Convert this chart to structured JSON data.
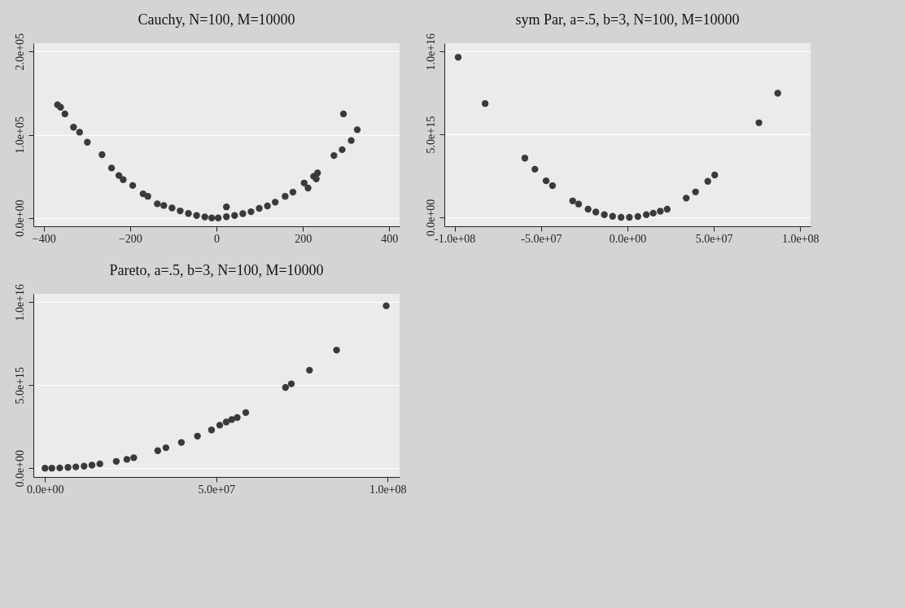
{
  "chart_data": [
    {
      "type": "scatter",
      "title": "Cauchy, N=100, M=10000",
      "marker": "circle",
      "grid": "y",
      "xlim": [
        -424,
        424
      ],
      "ylim": [
        -10000,
        210000
      ],
      "xticks": [
        -400,
        -200,
        0,
        200,
        400
      ],
      "yticks": [
        {
          "value": 0,
          "label": "0.0e+00"
        },
        {
          "value": 100000,
          "label": "1.0e+05"
        },
        {
          "value": 200000,
          "label": "2.0e+05"
        }
      ],
      "series": [
        {
          "color": "#3a3a3a",
          "x": [
            -368,
            -361,
            -351,
            -331,
            -317,
            -299,
            -265,
            -243,
            -226,
            -216,
            -194,
            -170,
            -159,
            -137,
            -122,
            -103,
            -84,
            -65,
            -46,
            -27,
            -11,
            4,
            23,
            23,
            42,
            61,
            80,
            99,
            118,
            136,
            159,
            177,
            203,
            212,
            225,
            234,
            231,
            272,
            291,
            294,
            312,
            326
          ],
          "values": [
            136000,
            133000,
            125000,
            109000,
            103000,
            91000,
            76000,
            60000,
            51000,
            46000,
            39000,
            29000,
            26000,
            17000,
            15000,
            12000,
            8500,
            5400,
            3000,
            1200,
            0,
            0,
            13300,
            1500,
            3000,
            5100,
            7500,
            11500,
            14500,
            19000,
            26000,
            31000,
            42000,
            36000,
            50000,
            54000,
            47000,
            75000,
            82000,
            125000,
            93000,
            106000
          ]
        }
      ]
    },
    {
      "type": "scatter",
      "title": "sym Par, a=.5, b=3, N=100, M=10000",
      "marker": "circle",
      "grid": "y",
      "xlim": [
        -106000000,
        106000000
      ],
      "ylim": [
        -540000000000000,
        10500000000000000
      ],
      "xticks": [
        {
          "value": -100000000,
          "label": "-1.0e+08"
        },
        {
          "value": -50000000,
          "label": "-5.0e+07"
        },
        {
          "value": 0,
          "label": "0.0e+00"
        },
        {
          "value": 50000000,
          "label": "5.0e+07"
        },
        {
          "value": 100000000,
          "label": "1.0e+08"
        }
      ],
      "yticks": [
        {
          "value": 0,
          "label": "0.0e+00"
        },
        {
          "value": 5000000000000000,
          "label": "5.0e+15"
        },
        {
          "value": 10000000000000000,
          "label": "1.0e+16"
        }
      ],
      "series": [
        {
          "color": "#3a3a3a",
          "x": [
            -98000000,
            -82400000,
            -59400000,
            -53600000,
            -47100000,
            -43400000,
            -31700000,
            -28300000,
            -22800000,
            -18300000,
            -13400000,
            -8600000,
            -3700000,
            1100000,
            6000000,
            10900000,
            14900000,
            19000000,
            23000000,
            34000000,
            39400000,
            46500000,
            50500000,
            76100000,
            87000000
          ],
          "values": [
            9650000000000000,
            6860000000000000,
            3570000000000000,
            2900000000000000,
            2200000000000000,
            1910000000000000,
            990000000000000,
            800000000000000,
            490000000000000,
            320000000000000,
            160000000000000,
            60000000000000,
            0,
            0,
            50000000000000,
            160000000000000,
            250000000000000,
            370000000000000,
            490000000000000,
            1160000000000000,
            1530000000000000,
            2170000000000000,
            2550000000000000,
            5700000000000000,
            7480000000000000
          ]
        }
      ]
    },
    {
      "type": "scatter",
      "title": "Pareto, a=.5, b=3, N=100, M=10000",
      "marker": "circle",
      "grid": "y",
      "xlim": [
        -3400000,
        103500000
      ],
      "ylim": [
        -530000000000000,
        10500000000000000
      ],
      "xticks": [
        {
          "value": 0,
          "label": "0.0e+00"
        },
        {
          "value": 50000000,
          "label": "5.0e+07"
        },
        {
          "value": 100000000,
          "label": "1.0e+08"
        }
      ],
      "yticks": [
        {
          "value": 0,
          "label": "0.0e+00"
        },
        {
          "value": 5000000000000000,
          "label": "5.0e+15"
        },
        {
          "value": 10000000000000000,
          "label": "1.0e+16"
        }
      ],
      "series": [
        {
          "color": "#3a3a3a",
          "x": [
            0,
            2000000,
            4300000,
            6700000,
            9000000,
            11400000,
            13700000,
            16000000,
            20800000,
            23900000,
            25900000,
            32900000,
            35300000,
            39800000,
            44500000,
            48600000,
            51000000,
            52900000,
            54500000,
            56100000,
            58600000,
            70200000,
            71900000,
            77200000,
            85100000,
            99600000
          ],
          "values": [
            0,
            0,
            15000000000000,
            45000000000000,
            75000000000000,
            120000000000000,
            180000000000000,
            260000000000000,
            410000000000000,
            530000000000000,
            630000000000000,
            1050000000000000,
            1230000000000000,
            1550000000000000,
            1930000000000000,
            2300000000000000,
            2590000000000000,
            2780000000000000,
            2930000000000000,
            3050000000000000,
            3350000000000000,
            4860000000000000,
            5080000000000000,
            5900000000000000,
            7110000000000000,
            9780000000000000
          ]
        }
      ]
    }
  ]
}
